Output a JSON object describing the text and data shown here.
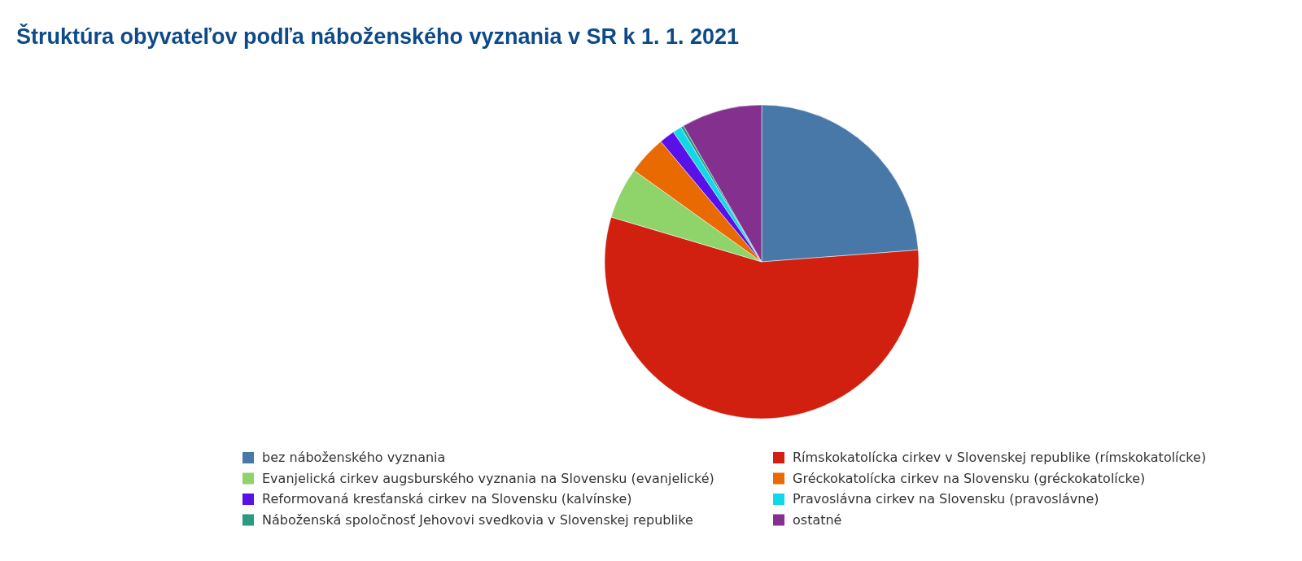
{
  "chart_data": {
    "type": "pie",
    "title": "Štruktúra obyvateľov podľa náboženského vyznania v SR k 1. 1. 2021",
    "categories": [
      "bez náboženského vyznania",
      "Rímskokatolícka cirkev v Slovenskej republike (rímskokatolícke)",
      "Evanjelická cirkev augsburského vyznania na Slovensku (evanjelické)",
      "Gréckokatolícka cirkev na Slovensku (gréckokatolícke)",
      "Reformovaná kresťanská cirkev na Slovensku (kalvínske)",
      "Pravoslávna cirkev na Slovensku (pravoslávne)",
      "Náboženská spoločnosť Jehovovi svedkovia v Slovenskej republike",
      "ostatné"
    ],
    "values": [
      23.8,
      55.8,
      5.3,
      4.0,
      1.6,
      0.9,
      0.3,
      8.3
    ],
    "colors": [
      "#4878a8",
      "#d12010",
      "#8fd46a",
      "#e86a00",
      "#5a10e8",
      "#10d8e8",
      "#2a9a80",
      "#83308f"
    ],
    "legend": "bottom"
  }
}
